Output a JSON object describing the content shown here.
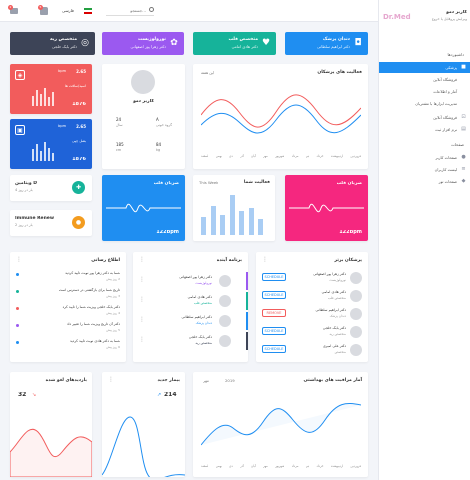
{
  "topbar": {
    "search_placeholder": "جستجو...",
    "language": "فارسی",
    "badge_messages": "2",
    "badge_notifications": "5"
  },
  "sidebar": {
    "user_name": "کاربر دمو",
    "user_sub": "ویرایش پروفایل یا خروج",
    "logo_text": "Dr.Med",
    "section_dashboards": "داشبوردها",
    "items": [
      {
        "label": "پزشکی",
        "icon": "dashboard-icon",
        "active": true
      },
      {
        "label": "فروشگاه آنلاین",
        "icon": "cart-icon"
      },
      {
        "label": "آمار و اطلاعات",
        "icon": "chart-icon"
      },
      {
        "label": "مدیریت ابزارها با مشتریان",
        "icon": "users-icon"
      }
    ],
    "section_apps": "",
    "items2": [
      {
        "label": "فروشگاه آنلاین",
        "icon": "store-icon"
      },
      {
        "label": "نرم افزار ثبت",
        "icon": "app-icon"
      }
    ],
    "section_pages": "صفحات",
    "items3": [
      {
        "label": "صفحات کاربر",
        "icon": "user-icon"
      },
      {
        "label": "لیست کاربران",
        "icon": "list-icon"
      },
      {
        "label": "صفحات تور",
        "icon": "tour-icon"
      }
    ]
  },
  "banners": [
    {
      "title": "متخصص ریه",
      "sub": "دکتر بابک خلجی",
      "color": "#3d4457",
      "icon": "lungs-icon"
    },
    {
      "title": "نورولوژیست",
      "sub": "دکتر زهرا پور اصفهانی",
      "color": "#9b59f0",
      "icon": "brain-icon"
    },
    {
      "title": "متخصص قلب",
      "sub": "دکتر هادی امامی",
      "color": "#16b39a",
      "icon": "heart-icon"
    },
    {
      "title": "دندان پزشک",
      "sub": "دکتر ابراهیم سلطانی",
      "color": "#1f8ef1",
      "icon": "tooth-icon"
    }
  ],
  "stat_cards": [
    {
      "value": "2.65",
      "unit": "bpm",
      "label": "اسید/سافت ها",
      "total": "1876",
      "color": "#f25c5c"
    },
    {
      "value": "2.65",
      "unit": "bpm",
      "label": "بصل چپی",
      "total": "1876",
      "color": "#1f63d8"
    }
  ],
  "profile": {
    "name": "کاربر دمو",
    "role": "گروه خونی",
    "stats": [
      {
        "value": "24",
        "label": "سال"
      },
      {
        "value": "A",
        "label": "گروه خونی"
      },
      {
        "value": "185",
        "label": "cm"
      },
      {
        "value": "84",
        "label": "kg"
      }
    ]
  },
  "activity_chart": {
    "title": "فعالیت های پزشکان",
    "range_label": "این هفته",
    "months": [
      "فروردین",
      "اردیبهشت",
      "خرداد",
      "تیر",
      "مرداد",
      "شهریور",
      "مهر",
      "آبان",
      "آذر",
      "دی",
      "بهمن",
      "اسفند"
    ]
  },
  "small_items": [
    {
      "title": "ویتامین D",
      "sub": "4 بار در روز",
      "color": "#16b39a",
      "icon": "vitamin-icon"
    },
    {
      "title": "Immune Renew",
      "sub": "2 بار در روز",
      "color": "#f39c1f",
      "icon": "pill-icon"
    }
  ],
  "heart_card_blue": {
    "title": "ضربان قلب",
    "value": "122bpm",
    "color": "#1f8ef1"
  },
  "activity_bars": {
    "title": "فعالیت شما",
    "range_label": "This Week",
    "values": [
      40,
      65,
      45,
      90,
      55,
      60,
      35
    ]
  },
  "heart_card_pink": {
    "title": "ضربان قلب",
    "value": "122bpm",
    "color": "#f5277f"
  },
  "top_doctors": {
    "title": "پزشکان برتر",
    "rows": [
      {
        "name": "دکتر زهرا پور اصفهانی",
        "spec": "نورولوژیست",
        "action": "SCHEDULE",
        "color": "#1f8ef1"
      },
      {
        "name": "دکتر هادی امامی",
        "spec": "متخصص قلب",
        "action": "SCHEDULE",
        "color": "#1f8ef1"
      },
      {
        "name": "دکتر ابراهیم سلطانی",
        "spec": "دندان پزشک",
        "action": "REMOVE",
        "color": "#f25c5c"
      },
      {
        "name": "دکتر بابک خلجی",
        "spec": "متخصص ریه",
        "action": "SCHEDULE",
        "color": "#1f8ef1"
      },
      {
        "name": "دکتر علی امیری",
        "spec": "متخصص",
        "action": "SCHEDULE",
        "color": "#1f8ef1"
      }
    ]
  },
  "upcoming": {
    "title": "برنامه آینده",
    "rows": [
      {
        "name": "دکتر زهرا پور اصفهانی",
        "spec": "نورولوژیست",
        "color": "#9b59f0"
      },
      {
        "name": "دکتر هادی امامی",
        "spec": "متخصص قلب",
        "color": "#16b39a"
      },
      {
        "name": "دکتر ابراهیم سلطانی",
        "spec": "دندان پزشک",
        "color": "#1f8ef1"
      },
      {
        "name": "دکتر بابک خلجی",
        "spec": "متخصص ریه",
        "color": "#3d4457"
      }
    ]
  },
  "notifications": {
    "title": "اطلاع رسانی",
    "rows": [
      {
        "text": "شما به دکتر زهرا پور نوبت تأیید کردید",
        "time": "2 روز پیش",
        "color": "#1f8ef1"
      },
      {
        "text": "تاریخ شما برای بازگشتی در دسترس است",
        "time": "3 روز پیش",
        "color": "#16b39a"
      },
      {
        "text": "دکتر بابک خلجی ویزیت شما را تأیید کرد",
        "time": "4 روز پیش",
        "color": "#f25c5c"
      },
      {
        "text": "دکتر آن تاریخ ویزیت شما را تغییر داد",
        "time": "5 روز پیش",
        "color": "#9b59f0"
      },
      {
        "text": "شما به دکتر هادی نوبت تأیید کردید",
        "time": "6 روز پیش",
        "color": "#1f8ef1"
      }
    ]
  },
  "visits_card": {
    "title": "بازدیدهای لغو شده",
    "value": "32",
    "color": "#f25c5c"
  },
  "new_patients": {
    "title": "بیمار جدید",
    "value": "214",
    "color": "#1f8ef1"
  },
  "health_chart": {
    "title": "آمار مراقبت های بهداشتی",
    "month_label": "مهر",
    "year_label": "2019",
    "months": [
      "فروردین",
      "اردیبهشت",
      "خرداد",
      "تیر",
      "مرداد",
      "شهریور",
      "مهر",
      "آبان",
      "آذر",
      "دی",
      "بهمن",
      "اسفند"
    ]
  },
  "colors": {
    "accent": "#1f8ef1",
    "red": "#f25c5c"
  }
}
